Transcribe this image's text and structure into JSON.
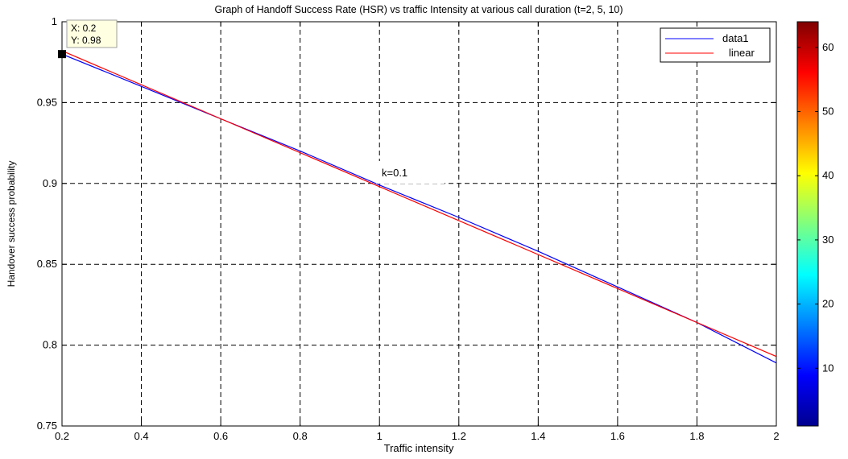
{
  "chart_data": {
    "type": "line",
    "title": "Graph of Handoff Success Rate (HSR) vs traffic Intensity at various call duration (t=2, 5, 10)",
    "xlabel": "Traffic intensity",
    "ylabel": "Handover success probability",
    "xlim": [
      0.2,
      2
    ],
    "ylim": [
      0.75,
      1
    ],
    "xticks": [
      "0.2",
      "0.4",
      "0.6",
      "0.8",
      "1",
      "1.2",
      "1.4",
      "1.6",
      "1.8",
      "2"
    ],
    "yticks": [
      "0.75",
      "0.8",
      "0.85",
      "0.9",
      "0.95",
      "1"
    ],
    "grid": true,
    "legend_position": "top-right",
    "series": [
      {
        "name": "data1",
        "color": "#0000ff",
        "x": [
          0.2,
          0.4,
          0.6,
          0.8,
          1.0,
          1.2,
          1.4,
          1.6,
          1.8,
          2.0
        ],
        "values": [
          0.98,
          0.96,
          0.94,
          0.92,
          0.899,
          0.879,
          0.858,
          0.836,
          0.814,
          0.789
        ]
      },
      {
        "name": "linear",
        "color": "#ff0000",
        "x": [
          0.2,
          2.0
        ],
        "values": [
          0.982,
          0.793
        ]
      }
    ],
    "annotations": [
      {
        "text": "k=0.1",
        "x": 1.05,
        "y": 0.905
      }
    ],
    "datatip": {
      "x_text": "X: 0.2",
      "y_text": "Y: 0.98",
      "x": 0.2,
      "y": 0.98
    },
    "colorbar": {
      "colormap": "jet",
      "range": [
        1,
        64
      ],
      "ticks": [
        "10",
        "20",
        "30",
        "40",
        "50",
        "60"
      ],
      "tick_values": [
        10,
        20,
        30,
        40,
        50,
        60
      ]
    }
  }
}
